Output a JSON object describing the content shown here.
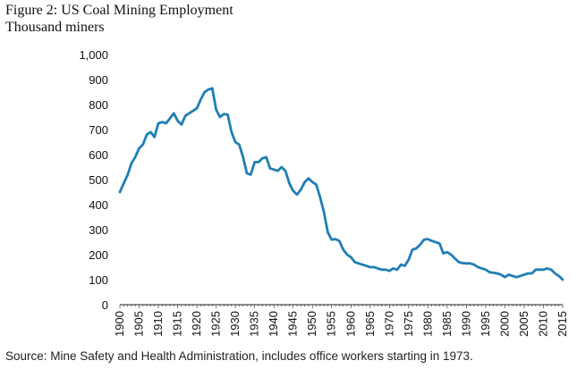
{
  "title": "Figure 2: US Coal Mining Employment",
  "subtitle": "Thousand miners",
  "source": "Source: Mine Safety and Health Administration, includes office workers starting in 1973.",
  "colors": {
    "line": "#1f7fb4",
    "axis": "#222222",
    "text": "#111111"
  },
  "chart_data": {
    "type": "line",
    "title": "Figure 2: US Coal Mining Employment",
    "ylabel": "Thousand miners",
    "xlabel": "",
    "xlim": [
      1900,
      2015
    ],
    "ylim": [
      0,
      1000
    ],
    "grid": false,
    "legend": "none",
    "y_ticks": [
      0,
      100,
      200,
      300,
      400,
      500,
      600,
      700,
      800,
      900,
      1000
    ],
    "y_tick_labels": [
      "0",
      "100",
      "200",
      "300",
      "400",
      "500",
      "600",
      "700",
      "800",
      "900",
      "1,000"
    ],
    "x_ticks": [
      1900,
      1905,
      1910,
      1915,
      1920,
      1925,
      1930,
      1935,
      1940,
      1945,
      1950,
      1955,
      1960,
      1965,
      1970,
      1975,
      1980,
      1985,
      1990,
      1995,
      2000,
      2005,
      2010,
      2015
    ],
    "series": [
      {
        "x": [
          1900,
          1901,
          1902,
          1903,
          1904,
          1905,
          1906,
          1907,
          1908,
          1909,
          1910,
          1911,
          1912,
          1913,
          1914,
          1915,
          1916,
          1917,
          1918,
          1919,
          1920,
          1921,
          1922,
          1923,
          1924,
          1925,
          1926,
          1927,
          1928,
          1929,
          1930,
          1931,
          1932,
          1933,
          1934,
          1935,
          1936,
          1937,
          1938,
          1939,
          1940,
          1941,
          1942,
          1943,
          1944,
          1945,
          1946,
          1947,
          1948,
          1949,
          1950,
          1951,
          1952,
          1953,
          1954,
          1955,
          1956,
          1957,
          1958,
          1959,
          1960,
          1961,
          1962,
          1963,
          1964,
          1965,
          1966,
          1967,
          1968,
          1969,
          1970,
          1971,
          1972,
          1973,
          1974,
          1975,
          1976,
          1977,
          1978,
          1979,
          1980,
          1981,
          1982,
          1983,
          1984,
          1985,
          1986,
          1987,
          1988,
          1989,
          1990,
          1991,
          1992,
          1993,
          1994,
          1995,
          1996,
          1997,
          1998,
          1999,
          2000,
          2001,
          2002,
          2003,
          2004,
          2005,
          2006,
          2007,
          2008,
          2009,
          2010,
          2011,
          2012,
          2013,
          2014,
          2015
        ],
        "y": [
          450,
          485,
          518,
          565,
          590,
          625,
          640,
          680,
          690,
          670,
          725,
          730,
          725,
          745,
          765,
          735,
          720,
          755,
          765,
          775,
          785,
          820,
          850,
          860,
          865,
          780,
          750,
          762,
          760,
          690,
          650,
          640,
          590,
          525,
          520,
          570,
          570,
          585,
          590,
          545,
          540,
          535,
          550,
          535,
          485,
          455,
          440,
          460,
          490,
          505,
          490,
          480,
          430,
          370,
          290,
          260,
          262,
          255,
          220,
          200,
          190,
          170,
          165,
          160,
          155,
          150,
          150,
          145,
          140,
          140,
          135,
          145,
          140,
          160,
          155,
          180,
          220,
          225,
          240,
          260,
          262,
          255,
          250,
          245,
          205,
          210,
          200,
          185,
          170,
          166,
          165,
          165,
          160,
          150,
          145,
          140,
          130,
          128,
          125,
          120,
          110,
          120,
          115,
          110,
          115,
          120,
          125,
          125,
          140,
          140,
          140,
          145,
          140,
          125,
          115,
          100
        ]
      }
    ]
  }
}
